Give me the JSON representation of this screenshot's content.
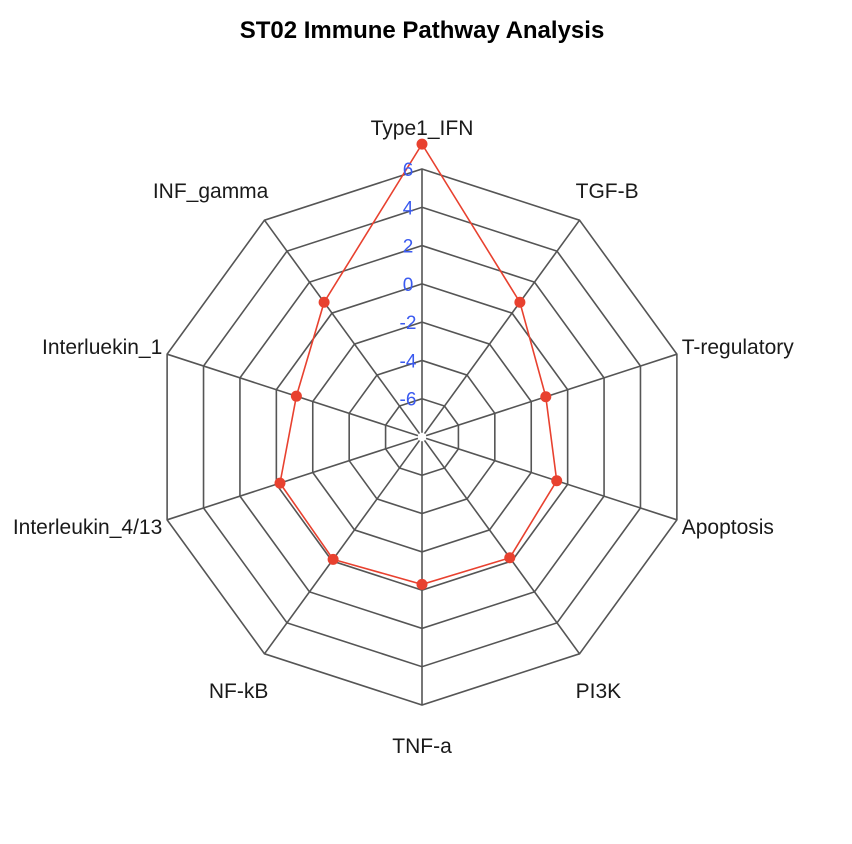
{
  "chart_data": {
    "type": "radar",
    "title": "ST02 Immune Pathway Analysis",
    "axes": [
      "Type1_IFN",
      "TGF-B",
      "T-regulatory",
      "Apoptosis",
      "PI3K",
      "TNF-a",
      "NF-kB",
      "Interleukin_4/13",
      "Interluekin_1",
      "INF_gamma"
    ],
    "rlim": [
      -8,
      6
    ],
    "tick_values": [
      6,
      4,
      2,
      0,
      -2,
      -4,
      -6
    ],
    "tick_labels": [
      "6",
      "4",
      "2",
      "0",
      "-2",
      "-4",
      "-6"
    ],
    "series": [
      {
        "values": [
          7.3,
          0.7,
          -1.2,
          -0.6,
          -0.2,
          -0.3,
          -0.1,
          -0.2,
          -1.1,
          0.7
        ]
      }
    ],
    "grid": true
  },
  "colors": {
    "series": "#e8412f",
    "tick_labels": "#3a5af0",
    "grid": "#555555"
  }
}
